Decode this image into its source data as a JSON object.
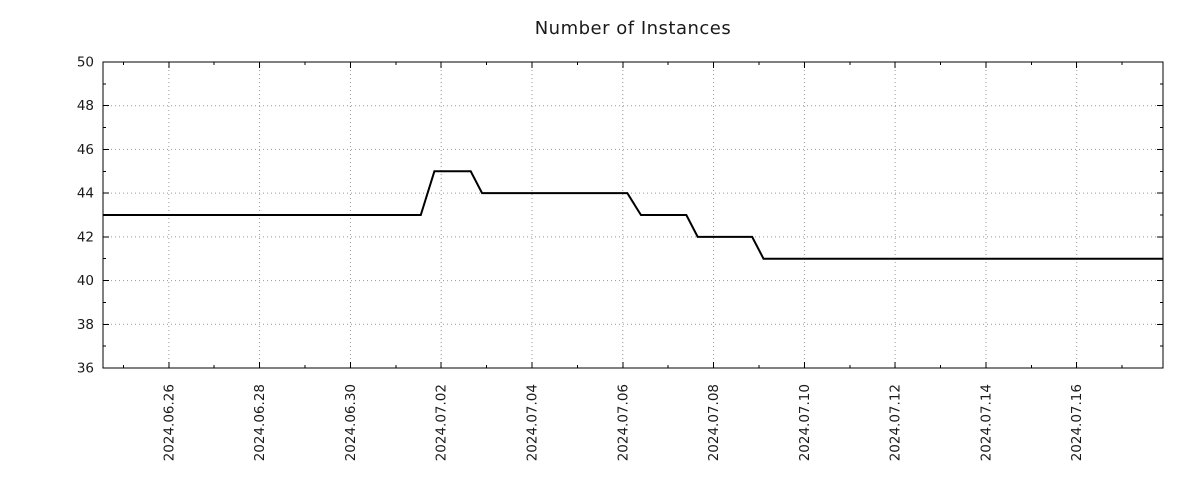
{
  "chart_data": {
    "type": "line",
    "title": "Number of Instances",
    "grid": true,
    "legend": false,
    "colors": {
      "line": "#000000",
      "grid": "#999999",
      "axis": "#000000",
      "background": "#ffffff",
      "text": "#1a1a1a"
    },
    "x_axis": {
      "unit": "days since 2024.06.24",
      "min": 0.55,
      "max": 23.9,
      "minor_step": 1,
      "major_ticks": [
        {
          "pos": 2,
          "label": "2024.06.26"
        },
        {
          "pos": 4,
          "label": "2024.06.28"
        },
        {
          "pos": 6,
          "label": "2024.06.30"
        },
        {
          "pos": 8,
          "label": "2024.07.02"
        },
        {
          "pos": 10,
          "label": "2024.07.04"
        },
        {
          "pos": 12,
          "label": "2024.07.06"
        },
        {
          "pos": 14,
          "label": "2024.07.08"
        },
        {
          "pos": 16,
          "label": "2024.07.10"
        },
        {
          "pos": 18,
          "label": "2024.07.12"
        },
        {
          "pos": 20,
          "label": "2024.07.14"
        },
        {
          "pos": 22,
          "label": "2024.07.16"
        }
      ]
    },
    "y_axis": {
      "min": 36,
      "max": 50,
      "major_step": 2,
      "minor_step": 1,
      "tick_labels": [
        "36",
        "38",
        "40",
        "42",
        "44",
        "46",
        "48",
        "50"
      ]
    },
    "series": [
      {
        "name": "instances",
        "color": "#000000",
        "line_width": 2,
        "points": [
          [
            0.55,
            43
          ],
          [
            7.55,
            43
          ],
          [
            7.85,
            45
          ],
          [
            8.65,
            45
          ],
          [
            8.9,
            44
          ],
          [
            12.1,
            44
          ],
          [
            12.4,
            43
          ],
          [
            13.4,
            43
          ],
          [
            13.65,
            42
          ],
          [
            14.85,
            42
          ],
          [
            15.1,
            41
          ],
          [
            23.9,
            41
          ]
        ]
      }
    ],
    "values_by_period": [
      {
        "from": "2024.06.24",
        "to": "2024.07.01",
        "value": 43
      },
      {
        "from": "2024.07.02",
        "to": "2024.07.02",
        "value": 45
      },
      {
        "from": "2024.07.03",
        "to": "2024.07.06",
        "value": 44
      },
      {
        "from": "2024.07.06",
        "to": "2024.07.07",
        "value": 43
      },
      {
        "from": "2024.07.08",
        "to": "2024.07.08",
        "value": 42
      },
      {
        "from": "2024.07.09",
        "to": "2024.07.17",
        "value": 41
      }
    ]
  }
}
